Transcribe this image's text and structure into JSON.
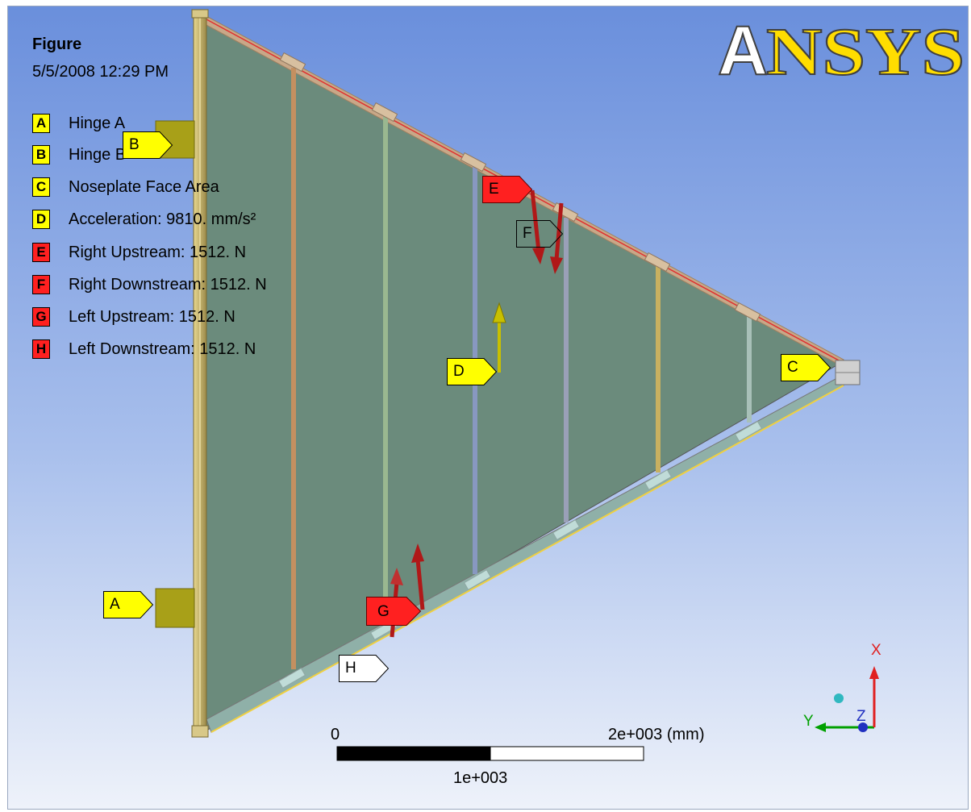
{
  "figure": {
    "title": "Figure",
    "datetime": "5/5/2008 12:29 PM"
  },
  "logo": {
    "text": "ANSYS",
    "first": "A",
    "rest": "NSYS"
  },
  "legend": [
    {
      "letter": "A",
      "label": "Hinge A",
      "color": "#ffff00"
    },
    {
      "letter": "B",
      "label": "Hinge B",
      "color": "#ffff00"
    },
    {
      "letter": "C",
      "label": "Noseplate Face Area",
      "color": "#ffff00"
    },
    {
      "letter": "D",
      "label": "Acceleration: 9810. mm/s²",
      "color": "#ffff00"
    },
    {
      "letter": "E",
      "label": "Right Upstream: 1512. N",
      "color": "#ff2020"
    },
    {
      "letter": "F",
      "label": "Right Downstream: 1512. N",
      "color": "#ff2020"
    },
    {
      "letter": "G",
      "label": "Left Upstream: 1512. N",
      "color": "#ff2020"
    },
    {
      "letter": "H",
      "label": "Left Downstream: 1512. N",
      "color": "#ff2020"
    }
  ],
  "tags": [
    {
      "letter": "A",
      "style": "yellow"
    },
    {
      "letter": "B",
      "style": "yellow"
    },
    {
      "letter": "C",
      "style": "yellow"
    },
    {
      "letter": "D",
      "style": "yellow"
    },
    {
      "letter": "E",
      "style": "red"
    },
    {
      "letter": "F",
      "style": "hollow"
    },
    {
      "letter": "G",
      "style": "red"
    },
    {
      "letter": "H",
      "style": "hollow"
    }
  ],
  "scale_bar": {
    "left_label": "0",
    "right_label": "2e+003 (mm)",
    "mid_label": "1e+003"
  },
  "triad": {
    "x": "X",
    "y": "Y",
    "z": "Z"
  },
  "colors": {
    "bg_top": "#6a8fdc",
    "bg_bottom": "#e8eef8",
    "panel": "#6b8b7c",
    "frame": "#c8b878",
    "tag_yellow": "#ffff00",
    "tag_red": "#ff2020",
    "force_arrow": "#b01818",
    "accel_arrow": "#c8c000"
  }
}
